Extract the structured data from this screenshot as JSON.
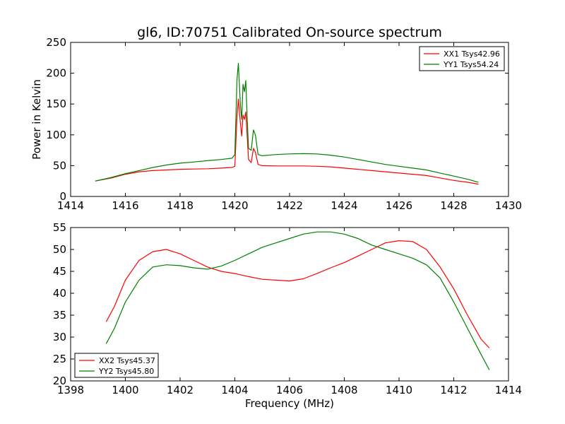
{
  "figure": {
    "title": "gl6, ID:70751 Calibrated On-source spectrum"
  },
  "chart_data": [
    {
      "type": "line",
      "title": "gl6, ID:70751 Calibrated On-source spectrum",
      "xlabel": "",
      "ylabel": "Power in Kelvin",
      "xlim": [
        1414,
        1430
      ],
      "ylim": [
        0,
        250
      ],
      "xticks": [
        1414,
        1416,
        1418,
        1420,
        1422,
        1424,
        1426,
        1428,
        1430
      ],
      "yticks": [
        0,
        50,
        100,
        150,
        200,
        250
      ],
      "legend_position": "top-right",
      "grid": false,
      "series": [
        {
          "name": "XX1 Tsys42.96",
          "color": "#ff0000",
          "x": [
            1414.9,
            1415.5,
            1416.0,
            1416.5,
            1417.0,
            1417.5,
            1418.0,
            1418.5,
            1419.0,
            1419.5,
            1419.9,
            1420.0,
            1420.08,
            1420.13,
            1420.2,
            1420.25,
            1420.3,
            1420.35,
            1420.4,
            1420.45,
            1420.5,
            1420.6,
            1420.68,
            1420.75,
            1420.85,
            1421.0,
            1421.5,
            1422.0,
            1422.5,
            1423.0,
            1423.5,
            1424.0,
            1424.5,
            1425.0,
            1425.5,
            1426.0,
            1426.5,
            1427.0,
            1427.5,
            1428.0,
            1428.5,
            1428.9
          ],
          "y": [
            25,
            30,
            36,
            40,
            42,
            43,
            44,
            44.5,
            45,
            46,
            47,
            49,
            130,
            158,
            120,
            98,
            132,
            125,
            137,
            100,
            60,
            55,
            78,
            72,
            52,
            50,
            49.5,
            49.5,
            49.5,
            49,
            48,
            46,
            44,
            42,
            40,
            38,
            36,
            34,
            30,
            26,
            23,
            20
          ]
        },
        {
          "name": "YY1 Tsys54.24",
          "color": "#008000",
          "x": [
            1414.9,
            1415.5,
            1416.0,
            1416.5,
            1417.0,
            1417.5,
            1418.0,
            1418.5,
            1419.0,
            1419.5,
            1419.9,
            1420.0,
            1420.08,
            1420.13,
            1420.2,
            1420.25,
            1420.3,
            1420.35,
            1420.4,
            1420.45,
            1420.5,
            1420.6,
            1420.68,
            1420.75,
            1420.85,
            1421.0,
            1421.5,
            1422.0,
            1422.5,
            1423.0,
            1423.5,
            1424.0,
            1424.5,
            1425.0,
            1425.5,
            1426.0,
            1426.5,
            1427.0,
            1427.5,
            1428.0,
            1428.5,
            1428.9
          ],
          "y": [
            25,
            31,
            37,
            42,
            47,
            51,
            54,
            56,
            58,
            60,
            62,
            68,
            190,
            216,
            150,
            125,
            182,
            170,
            188,
            130,
            78,
            75,
            108,
            100,
            68,
            66,
            68,
            69,
            69.5,
            69,
            67,
            64,
            60,
            56,
            52,
            49,
            46,
            43,
            38,
            33,
            28,
            23
          ]
        }
      ]
    },
    {
      "type": "line",
      "title": "",
      "xlabel": "Frequency (MHz)",
      "ylabel": "",
      "xlim": [
        1398,
        1414
      ],
      "ylim": [
        20,
        55
      ],
      "xticks": [
        1398,
        1400,
        1402,
        1404,
        1406,
        1408,
        1410,
        1412,
        1414
      ],
      "yticks": [
        20,
        25,
        30,
        35,
        40,
        45,
        50,
        55
      ],
      "legend_position": "bottom-left",
      "grid": false,
      "series": [
        {
          "name": "XX2 Tsys45.37",
          "color": "#ff0000",
          "x": [
            1399.3,
            1399.6,
            1400.0,
            1400.5,
            1401.0,
            1401.5,
            1402.0,
            1402.5,
            1403.0,
            1403.5,
            1404.0,
            1404.5,
            1405.0,
            1405.5,
            1406.0,
            1406.5,
            1407.0,
            1407.5,
            1408.0,
            1408.5,
            1409.0,
            1409.5,
            1410.0,
            1410.5,
            1411.0,
            1411.5,
            1412.0,
            1412.5,
            1413.0,
            1413.3
          ],
          "y": [
            33.5,
            37,
            43,
            47.5,
            49.5,
            50,
            49,
            47.5,
            46,
            45,
            44.5,
            43.8,
            43.2,
            43,
            42.8,
            43.3,
            44.5,
            45.8,
            47,
            48.5,
            50,
            51.5,
            52,
            51.8,
            50,
            46,
            41,
            35,
            29.5,
            27.5
          ]
        },
        {
          "name": "YY2 Tsys45.80",
          "color": "#008000",
          "x": [
            1399.3,
            1399.6,
            1400.0,
            1400.5,
            1401.0,
            1401.5,
            1402.0,
            1402.5,
            1403.0,
            1403.5,
            1404.0,
            1404.5,
            1405.0,
            1405.5,
            1406.0,
            1406.5,
            1407.0,
            1407.5,
            1408.0,
            1408.5,
            1409.0,
            1409.5,
            1410.0,
            1410.5,
            1411.0,
            1411.5,
            1412.0,
            1412.5,
            1413.0,
            1413.3
          ],
          "y": [
            28.5,
            32,
            38,
            43,
            46,
            46.5,
            46.3,
            45.8,
            45.5,
            46.2,
            47.5,
            49,
            50.5,
            51.5,
            52.5,
            53.5,
            54,
            54,
            53.5,
            52.5,
            51,
            50,
            49,
            48,
            46.5,
            43.5,
            38,
            32,
            26,
            22.5
          ]
        }
      ]
    }
  ]
}
